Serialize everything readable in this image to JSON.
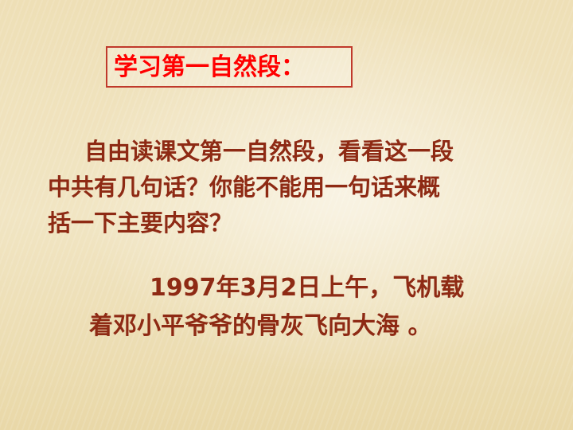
{
  "slide": {
    "title": "学习第一自然段：",
    "question_lines": [
      "自由读课文第一自然段，看看这一段",
      "中共有几句话？你能不能用一句话来概",
      "括一下主要内容？"
    ],
    "answer_lines": [
      "1997年3月2日上午，飞机载",
      "着邓小平爷爷的骨灰飞向大海 。"
    ]
  },
  "colors": {
    "title": "#ff0000",
    "title_border": "#c0392b",
    "body_text": "#8e2a14",
    "background": "#efe2bb"
  }
}
